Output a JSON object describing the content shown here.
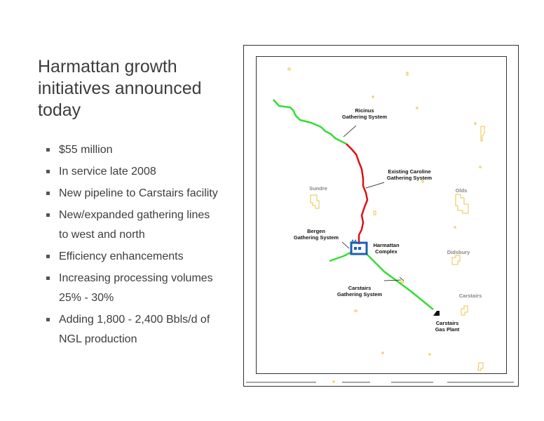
{
  "slide": {
    "title": "Harmattan growth initiatives announced today",
    "bullets": [
      "$55 million",
      "In service late 2008",
      "New pipeline to Carstairs facility",
      "New/expanded gathering lines to west and north",
      "Efficiency enhancements",
      "Increasing processing volumes 25% - 30%",
      "Adding 1,800 - 2,400 Bbls/d of NGL production"
    ]
  },
  "map": {
    "colors": {
      "new_line": "#33dd33",
      "existing_line": "#dd1111",
      "town_outline": "#e8c44a",
      "plant": "#1a5fb4"
    },
    "labels": {
      "ricinus_1": "Ricinus",
      "ricinus_2": "Gathering System",
      "caroline_1": "Existing Caroline",
      "caroline_2": "Gathering System",
      "sundre": "Sundre",
      "olds": "Olds",
      "bergen_1": "Bergen",
      "bergen_2": "Gathering System",
      "harmattan_1": "Harmattan",
      "harmattan_2": "Complex",
      "didsbury": "Didsbury",
      "carstairs_gs_1": "Carstairs",
      "carstairs_gs_2": "Gathering System",
      "carstairs_town": "Carstairs",
      "carstairs_plant_1": "Carstairs",
      "carstairs_plant_2": "Gas Plant"
    }
  }
}
